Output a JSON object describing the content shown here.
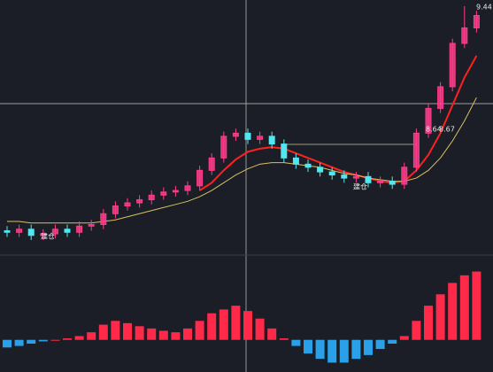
{
  "chart_data": [
    {
      "type": "candlestick",
      "up_color": "#ff3c8c",
      "down_color": "#54e6f0",
      "ylim": [
        7.85,
        9.48
      ],
      "open": [
        7.99,
        7.98,
        8.0,
        7.96,
        7.97,
        8.0,
        7.98,
        8.02,
        8.03,
        8.1,
        8.15,
        8.17,
        8.19,
        8.22,
        8.24,
        8.25,
        8.28,
        8.38,
        8.46,
        8.6,
        8.62,
        8.58,
        8.6,
        8.55,
        8.46,
        8.42,
        8.4,
        8.37,
        8.35,
        8.33,
        8.34,
        8.3,
        8.31,
        8.29,
        8.4,
        8.62,
        8.78,
        8.92,
        9.2,
        9.3
      ],
      "close": [
        7.98,
        8.0,
        7.96,
        7.97,
        8.0,
        7.98,
        8.02,
        8.03,
        8.1,
        8.15,
        8.17,
        8.19,
        8.22,
        8.24,
        8.25,
        8.28,
        8.38,
        8.46,
        8.6,
        8.62,
        8.58,
        8.6,
        8.55,
        8.46,
        8.42,
        8.4,
        8.37,
        8.35,
        8.33,
        8.34,
        8.3,
        8.31,
        8.29,
        8.4,
        8.62,
        8.78,
        8.92,
        9.2,
        9.3,
        9.38
      ],
      "high": [
        8.02,
        8.03,
        8.03,
        8.0,
        8.03,
        8.03,
        8.05,
        8.06,
        8.13,
        8.18,
        8.2,
        8.22,
        8.25,
        8.27,
        8.28,
        8.31,
        8.41,
        8.49,
        8.63,
        8.65,
        8.65,
        8.63,
        8.63,
        8.58,
        8.49,
        8.45,
        8.43,
        8.4,
        8.38,
        8.37,
        8.37,
        8.34,
        8.34,
        8.43,
        8.65,
        8.81,
        8.95,
        9.23,
        9.44,
        9.41
      ],
      "low": [
        7.95,
        7.95,
        7.93,
        7.93,
        7.94,
        7.95,
        7.95,
        7.99,
        8.0,
        8.07,
        8.12,
        8.14,
        8.16,
        8.19,
        8.21,
        8.22,
        8.25,
        8.35,
        8.43,
        8.57,
        8.55,
        8.55,
        8.52,
        8.43,
        8.39,
        8.37,
        8.34,
        8.32,
        8.3,
        8.3,
        8.27,
        8.27,
        8.26,
        8.26,
        8.37,
        8.59,
        8.75,
        8.89,
        9.17,
        9.27
      ],
      "series": [
        {
          "color": "#ff2020",
          "values": [
            null,
            null,
            null,
            null,
            null,
            null,
            null,
            null,
            null,
            null,
            null,
            null,
            null,
            null,
            null,
            null,
            8.25,
            8.3,
            8.38,
            8.45,
            8.5,
            8.52,
            8.53,
            8.52,
            8.49,
            8.46,
            8.43,
            8.4,
            8.37,
            8.35,
            8.33,
            8.31,
            8.3,
            8.31,
            8.38,
            8.48,
            8.62,
            8.8,
            8.98,
            9.12
          ]
        },
        {
          "color": "#d8c060",
          "values": [
            8.05,
            8.05,
            8.04,
            8.04,
            8.04,
            8.04,
            8.04,
            8.04,
            8.05,
            8.06,
            8.08,
            8.1,
            8.12,
            8.14,
            8.16,
            8.18,
            8.21,
            8.25,
            8.3,
            8.35,
            8.39,
            8.42,
            8.43,
            8.43,
            8.42,
            8.41,
            8.4,
            8.38,
            8.36,
            8.35,
            8.33,
            8.32,
            8.31,
            8.31,
            8.33,
            8.38,
            8.46,
            8.57,
            8.7,
            8.85
          ]
        }
      ],
      "annotations": [
        "9.44",
        "8.64",
        "8.67",
        "建仓",
        "建仓"
      ]
    },
    {
      "type": "histogram-oscillator",
      "up_color": "#ff2a4a",
      "down_color": "#2aa0e8",
      "ylim": [
        -0.4,
        1.0
      ],
      "values": [
        -0.1,
        -0.08,
        -0.05,
        -0.02,
        0,
        0.02,
        0.05,
        0.1,
        0.2,
        0.25,
        0.22,
        0.18,
        0.15,
        0.12,
        0.1,
        0.15,
        0.25,
        0.35,
        0.4,
        0.45,
        0.38,
        0.28,
        0.15,
        0.02,
        -0.08,
        -0.18,
        -0.25,
        -0.3,
        -0.3,
        -0.25,
        -0.2,
        -0.12,
        -0.05,
        0.05,
        0.25,
        0.45,
        0.6,
        0.75,
        0.85,
        0.9
      ]
    }
  ]
}
